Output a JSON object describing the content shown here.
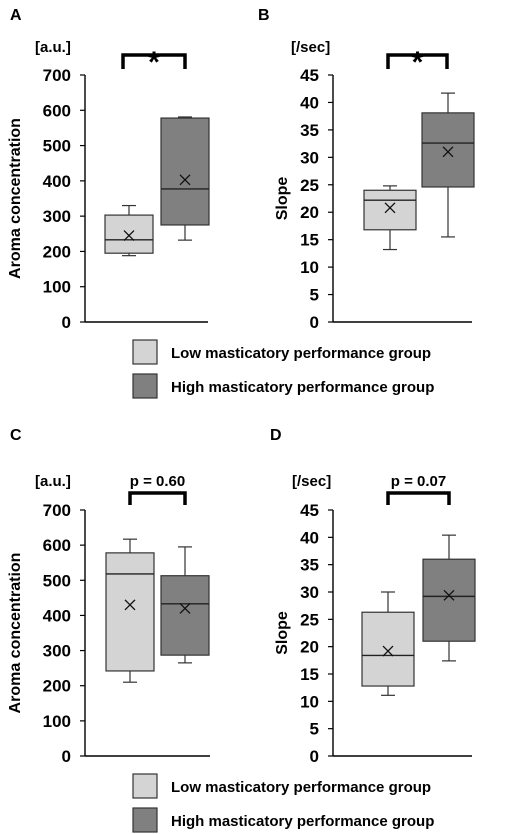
{
  "colors": {
    "low_group": "#d4d4d4",
    "high_group": "#808080"
  },
  "legends": [
    {
      "entries": [
        {
          "label": "Low masticatory performance group",
          "color": "#d4d4d4"
        },
        {
          "label": "High masticatory performance group",
          "color": "#808080"
        }
      ]
    },
    {
      "entries": [
        {
          "label": "Low masticatory performance group",
          "color": "#d4d4d4"
        },
        {
          "label": "High masticatory performance group",
          "color": "#808080"
        }
      ]
    }
  ],
  "chart_data": [
    {
      "panel": "A",
      "type": "box",
      "ylabel": "Aroma concentration",
      "unit": "[a.u.]",
      "ylim": [
        0,
        700
      ],
      "yticks": [
        0,
        100,
        200,
        300,
        400,
        500,
        600,
        700
      ],
      "significance": "*",
      "series": [
        {
          "name": "Low masticatory performance group",
          "min": 188,
          "q1": 195,
          "median": 233,
          "q3": 303,
          "max": 330,
          "mean": 245
        },
        {
          "name": "High masticatory performance group",
          "min": 232,
          "q1": 275,
          "median": 377,
          "q3": 578,
          "max": 581,
          "mean": 403
        }
      ]
    },
    {
      "panel": "B",
      "type": "box",
      "ylabel": "Slope",
      "unit": "[/sec]",
      "ylim": [
        0,
        45
      ],
      "yticks": [
        0,
        5,
        10,
        15,
        20,
        25,
        30,
        35,
        40,
        45
      ],
      "significance": "*",
      "series": [
        {
          "name": "Low masticatory performance group",
          "min": 13.2,
          "q1": 16.8,
          "median": 22.2,
          "q3": 24.0,
          "max": 24.8,
          "mean": 20.8
        },
        {
          "name": "High masticatory performance group",
          "min": 15.5,
          "q1": 24.6,
          "median": 32.6,
          "q3": 38.1,
          "max": 41.7,
          "mean": 31.0
        }
      ]
    },
    {
      "panel": "C",
      "type": "box",
      "ylabel": "Aroma concentration",
      "unit": "[a.u.]",
      "ylim": [
        0,
        700
      ],
      "yticks": [
        0,
        100,
        200,
        300,
        400,
        500,
        600,
        700
      ],
      "significance": "p = 0.60",
      "series": [
        {
          "name": "Low masticatory performance group",
          "min": 210,
          "q1": 242,
          "median": 518,
          "q3": 578,
          "max": 617,
          "mean": 430
        },
        {
          "name": "High masticatory performance group",
          "min": 265,
          "q1": 287,
          "median": 433,
          "q3": 513,
          "max": 595,
          "mean": 420
        }
      ]
    },
    {
      "panel": "D",
      "type": "box",
      "ylabel": "Slope",
      "unit": "[/sec]",
      "ylim": [
        0,
        45
      ],
      "yticks": [
        0,
        5,
        10,
        15,
        20,
        25,
        30,
        35,
        40,
        45
      ],
      "significance": "p = 0.07",
      "series": [
        {
          "name": "Low masticatory performance group",
          "min": 11.1,
          "q1": 12.8,
          "median": 18.4,
          "q3": 26.3,
          "max": 30.0,
          "mean": 19.2
        },
        {
          "name": "High masticatory performance group",
          "min": 17.4,
          "q1": 21.0,
          "median": 29.2,
          "q3": 36.0,
          "max": 40.4,
          "mean": 29.4
        }
      ]
    }
  ]
}
